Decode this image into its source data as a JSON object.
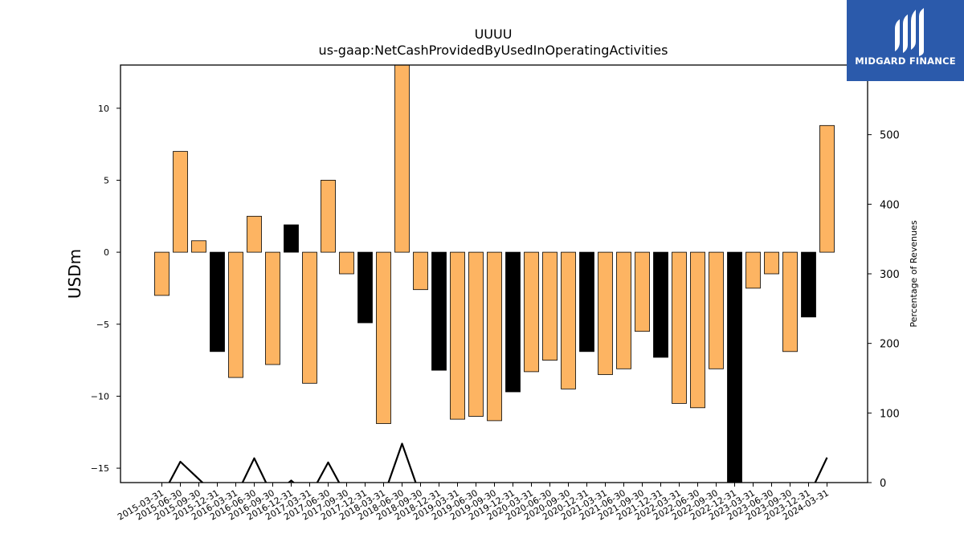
{
  "chart_data": {
    "type": "bar",
    "title": "UUUU",
    "subtitle": "us-gaap:NetCashProvidedByUsedInOperatingActivities",
    "ylabel": "USDm",
    "y2label": "Percentage of Revenues",
    "ylim": [
      -16,
      13
    ],
    "y2lim": [
      0,
      600
    ],
    "yticks": [
      -15,
      -10,
      -5,
      0,
      5,
      10
    ],
    "y2ticks": [
      0,
      100,
      200,
      300,
      400,
      500
    ],
    "categories": [
      "2015-03-31",
      "2015-06-30",
      "2015-09-30",
      "2015-12-31",
      "2016-03-31",
      "2016-06-30",
      "2016-09-30",
      "2016-12-31",
      "2017-03-31",
      "2017-06-30",
      "2017-09-30",
      "2017-12-31",
      "2018-03-31",
      "2018-06-30",
      "2018-09-30",
      "2018-12-31",
      "2019-03-31",
      "2019-06-30",
      "2019-09-30",
      "2019-12-31",
      "2020-03-31",
      "2020-06-30",
      "2020-09-30",
      "2020-12-31",
      "2021-03-31",
      "2021-06-30",
      "2021-09-30",
      "2021-12-31",
      "2022-03-31",
      "2022-06-30",
      "2022-09-30",
      "2022-12-31",
      "2023-03-31",
      "2023-06-30",
      "2023-09-30",
      "2023-12-31",
      "2024-03-31"
    ],
    "values": [
      -3.0,
      7.0,
      0.8,
      -6.9,
      -8.7,
      2.5,
      -7.8,
      1.9,
      -9.1,
      5.0,
      -1.5,
      -4.9,
      -11.9,
      13.0,
      -2.6,
      -8.2,
      -11.6,
      -11.4,
      -11.7,
      -9.7,
      -8.3,
      -7.5,
      -9.5,
      -6.9,
      -8.5,
      -8.1,
      -5.5,
      -7.3,
      -10.5,
      -10.8,
      -8.1,
      -16.0,
      -2.5,
      -1.5,
      -6.9,
      -4.5,
      8.8
    ],
    "bar_colors": [
      "#fdb462",
      "#fdb462",
      "#fdb462",
      "#000000",
      "#fdb462",
      "#fdb462",
      "#fdb462",
      "#000000",
      "#fdb462",
      "#fdb462",
      "#fdb462",
      "#000000",
      "#fdb462",
      "#fdb462",
      "#fdb462",
      "#000000",
      "#fdb462",
      "#fdb462",
      "#fdb462",
      "#000000",
      "#fdb462",
      "#fdb462",
      "#fdb462",
      "#000000",
      "#fdb462",
      "#fdb462",
      "#fdb462",
      "#000000",
      "#fdb462",
      "#fdb462",
      "#fdb462",
      "#000000",
      "#fdb462",
      "#fdb462",
      "#fdb462",
      "#000000",
      "#fdb462"
    ],
    "pct_of_revenues": [
      -20,
      30,
      5,
      -20,
      -20,
      35,
      -20,
      3,
      -20,
      29,
      -20,
      -20,
      -20,
      56,
      -20,
      -20,
      -20,
      -20,
      -20,
      -20,
      -20,
      -20,
      -20,
      -20,
      -20,
      -20,
      -20,
      -20,
      -20,
      -20,
      -20,
      -20,
      -20,
      -20,
      -20,
      -20,
      36
    ]
  },
  "logo": {
    "text": "MIDGARD FINANCE",
    "background": "#2b5aab"
  }
}
